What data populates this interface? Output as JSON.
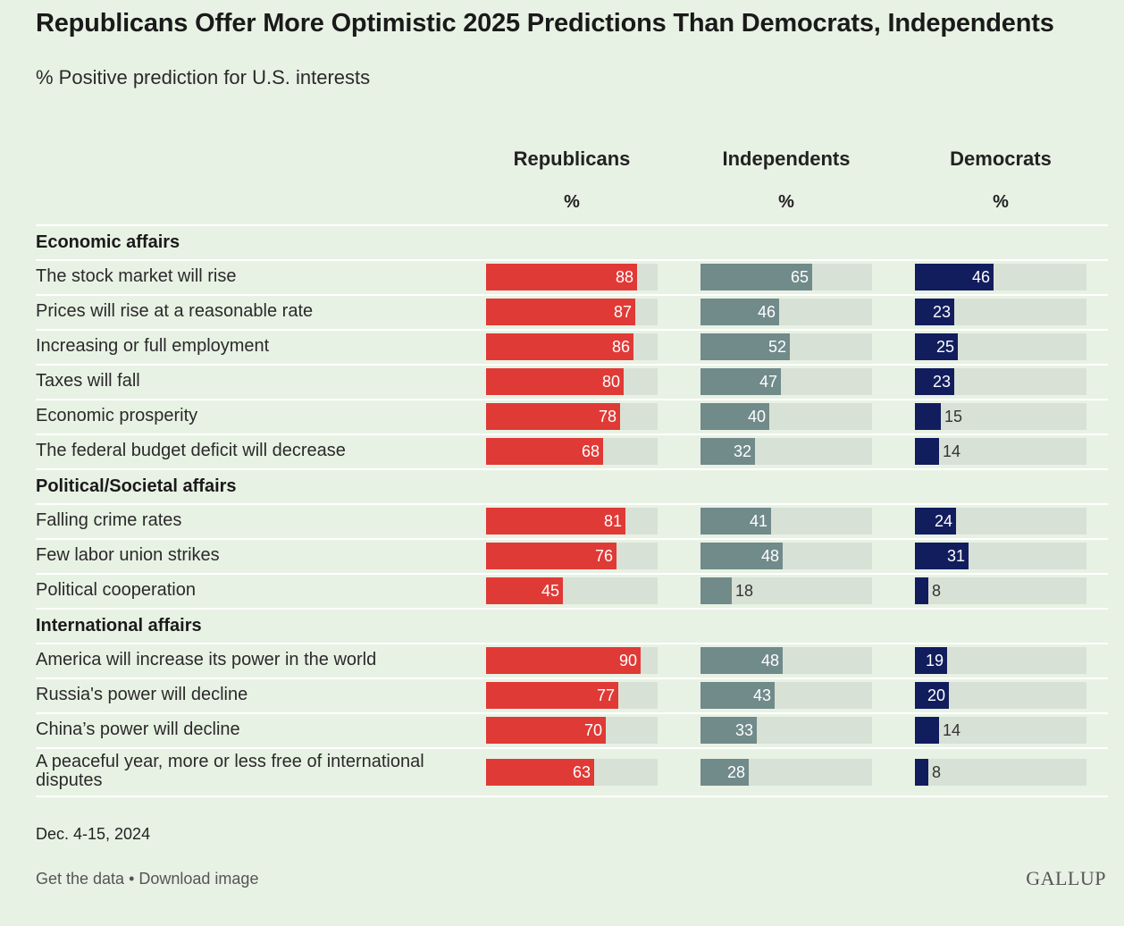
{
  "title": "Republicans Offer More Optimistic 2025 Predictions Than Democrats, Independents",
  "subtitle": "% Positive prediction for U.S. interests",
  "columns": [
    {
      "name": "Republicans",
      "unit": "%",
      "color": "#e03a36"
    },
    {
      "name": "Independents",
      "unit": "%",
      "color": "#718a8a"
    },
    {
      "name": "Democrats",
      "unit": "%",
      "color": "#121d5e"
    }
  ],
  "track_color": "#d8e1d5",
  "chart_data": {
    "type": "bar",
    "orientation": "horizontal",
    "xlim": [
      0,
      100
    ],
    "grid": false,
    "series_names": [
      "Republicans",
      "Independents",
      "Democrats"
    ],
    "sections": [
      {
        "label": "Economic affairs",
        "rows": [
          {
            "label": "The stock market will rise",
            "values": [
              88,
              65,
              46
            ]
          },
          {
            "label": "Prices will rise at a reasonable rate",
            "values": [
              87,
              46,
              23
            ]
          },
          {
            "label": "Increasing or full employment",
            "values": [
              86,
              52,
              25
            ]
          },
          {
            "label": "Taxes will fall",
            "values": [
              80,
              47,
              23
            ]
          },
          {
            "label": "Economic prosperity",
            "values": [
              78,
              40,
              15
            ]
          },
          {
            "label": "The federal budget deficit will decrease",
            "values": [
              68,
              32,
              14
            ]
          }
        ]
      },
      {
        "label": "Political/Societal affairs",
        "rows": [
          {
            "label": "Falling crime rates",
            "values": [
              81,
              41,
              24
            ]
          },
          {
            "label": "Few labor union strikes",
            "values": [
              76,
              48,
              31
            ]
          },
          {
            "label": "Political cooperation",
            "values": [
              45,
              18,
              8
            ]
          }
        ]
      },
      {
        "label": "International affairs",
        "rows": [
          {
            "label": "America will increase its power in the world",
            "values": [
              90,
              48,
              19
            ]
          },
          {
            "label": "Russia's power will decline",
            "values": [
              77,
              43,
              20
            ]
          },
          {
            "label": "China’s power will decline",
            "values": [
              70,
              33,
              14
            ]
          },
          {
            "label": "A peaceful year, more or less free of international disputes",
            "values": [
              63,
              28,
              8
            ]
          }
        ]
      }
    ]
  },
  "footer": {
    "date": "Dec. 4-15, 2024",
    "links": "Get the data • Download image",
    "logo": "GALLUP"
  }
}
